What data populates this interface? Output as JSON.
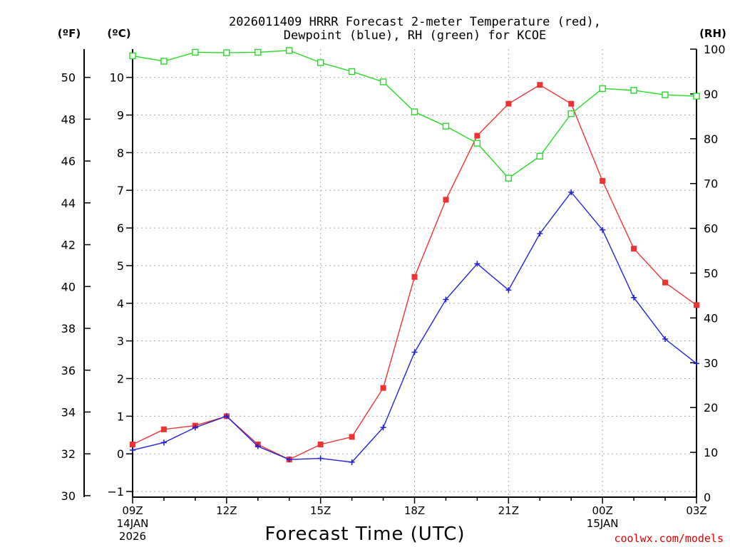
{
  "chart_data": {
    "type": "line",
    "title_line1": "2026011409 HRRR Forecast 2-meter Temperature (red),",
    "title_line2": "Dewpoint (blue), RH (green) for KCOE",
    "xlabel": "Forecast Time (UTC)",
    "credit": "coolwx.com/models",
    "unit_f": "(ºF)",
    "unit_c": "(ºC)",
    "unit_rh": "(RH)",
    "x_hours": [
      9,
      10,
      11,
      12,
      13,
      14,
      15,
      16,
      17,
      18,
      19,
      20,
      21,
      22,
      23,
      24,
      25,
      26,
      27
    ],
    "x_ticks": [
      {
        "hour": 9,
        "lines": [
          "09Z",
          "14JAN",
          "2026"
        ]
      },
      {
        "hour": 12,
        "lines": [
          "12Z"
        ]
      },
      {
        "hour": 15,
        "lines": [
          "15Z"
        ]
      },
      {
        "hour": 18,
        "lines": [
          "18Z"
        ]
      },
      {
        "hour": 21,
        "lines": [
          "21Z"
        ]
      },
      {
        "hour": 24,
        "lines": [
          "00Z",
          "15JAN"
        ]
      },
      {
        "hour": 27,
        "lines": [
          "03Z"
        ]
      }
    ],
    "x_range": [
      9,
      27
    ],
    "celsius_range": [
      -1.15,
      10.75
    ],
    "celsius_ticks": [
      -1,
      0,
      1,
      2,
      3,
      4,
      5,
      6,
      7,
      8,
      9,
      10
    ],
    "fahrenheit_ticks": [
      30,
      32,
      34,
      36,
      38,
      40,
      42,
      44,
      46,
      48,
      50
    ],
    "rh_range": [
      0,
      100
    ],
    "rh_ticks": [
      0,
      10,
      20,
      30,
      40,
      50,
      60,
      70,
      80,
      90,
      100
    ],
    "grid": true,
    "series": [
      {
        "name": "Temperature",
        "color": "#ee3333",
        "marker": "filled-square",
        "axis": "celsius",
        "values": [
          0.25,
          0.65,
          0.75,
          1.0,
          0.25,
          -0.15,
          0.25,
          0.45,
          1.75,
          4.7,
          6.75,
          8.45,
          9.3,
          9.8,
          9.3,
          7.25,
          5.45,
          4.55,
          3.95
        ]
      },
      {
        "name": "Dewpoint",
        "color": "#2222dd",
        "marker": "plus",
        "axis": "celsius",
        "values": [
          0.1,
          0.3,
          0.7,
          1.0,
          0.2,
          -0.15,
          -0.12,
          -0.22,
          0.7,
          2.7,
          4.1,
          5.05,
          4.35,
          5.85,
          6.95,
          5.95,
          4.15,
          3.05,
          2.4
        ]
      },
      {
        "name": "RH",
        "color": "#22dd22",
        "marker": "open-square",
        "axis": "rh",
        "values": [
          98.5,
          97.3,
          99.3,
          99.2,
          99.3,
          99.7,
          97.0,
          95.0,
          92.7,
          86.0,
          82.8,
          79.0,
          71.2,
          76.1,
          85.6,
          91.2,
          90.8,
          89.8,
          89.5
        ]
      }
    ]
  }
}
